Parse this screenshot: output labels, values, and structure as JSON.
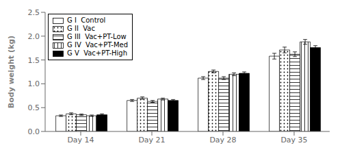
{
  "chart_data": {
    "type": "bar",
    "categories": [
      "Day 14",
      "Day 21",
      "Day 28",
      "Day 35"
    ],
    "series": [
      {
        "name": "G I  Control",
        "color": "white",
        "values": [
          0.33,
          0.65,
          1.12,
          1.58
        ],
        "errors": [
          0.015,
          0.02,
          0.03,
          0.06
        ]
      },
      {
        "name": "G II  Vac",
        "color": "white",
        "values": [
          0.37,
          0.7,
          1.26,
          1.71
        ],
        "errors": [
          0.02,
          0.025,
          0.03,
          0.06
        ]
      },
      {
        "name": "G III  Vac+PT-Low",
        "color": "white",
        "values": [
          0.35,
          0.63,
          1.12,
          1.62
        ],
        "errors": [
          0.015,
          0.02,
          0.03,
          0.05
        ]
      },
      {
        "name": "G IV  Vac+PT-Med",
        "color": "white",
        "values": [
          0.33,
          0.68,
          1.2,
          1.88
        ],
        "errors": [
          0.015,
          0.02,
          0.03,
          0.05
        ]
      },
      {
        "name": "G V  Vac+PT-High",
        "color": "black",
        "values": [
          0.35,
          0.65,
          1.22,
          1.76
        ],
        "errors": [
          0.02,
          0.02,
          0.03,
          0.04
        ]
      }
    ],
    "ylabel": "Body weight (kg)",
    "ylim": [
      0,
      2.5
    ],
    "yticks": [
      {
        "value": 0,
        "label": "0.0"
      },
      0.5,
      {
        "value": 1,
        "label": "1.0"
      },
      1.5,
      {
        "value": 2,
        "label": "2.0"
      },
      2.5
    ],
    "legend": "upper left",
    "grid": false
  }
}
